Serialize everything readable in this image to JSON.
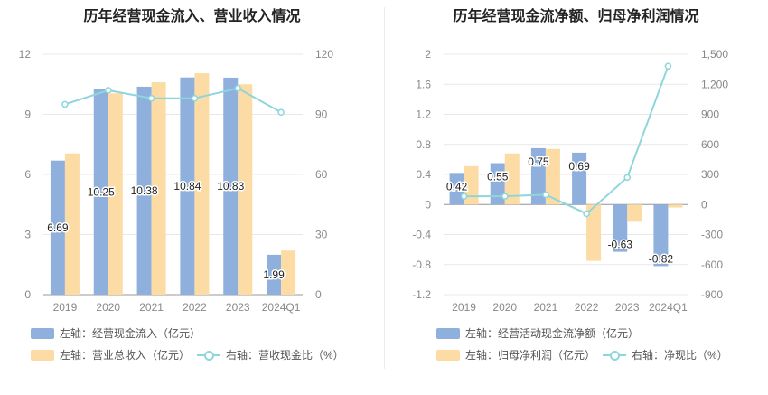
{
  "colors": {
    "blue": "#8fb0dd",
    "yellow": "#fcdca4",
    "line": "#8dd6dc",
    "grid": "#e8e8e8",
    "axis_text": "#888888"
  },
  "chart_data": [
    {
      "type": "bar",
      "title": "历年经营现金流入、营业收入情况",
      "categories": [
        "2019",
        "2020",
        "2021",
        "2022",
        "2023",
        "2024Q1"
      ],
      "left_axis": {
        "ylim": [
          0,
          12
        ],
        "ticks": [
          "0",
          "3",
          "6",
          "9",
          "12"
        ]
      },
      "right_axis": {
        "ylim": [
          0,
          120
        ],
        "ticks": [
          "0",
          "30",
          "60",
          "90",
          "120"
        ]
      },
      "series": [
        {
          "name": "左轴：经营现金流入（亿元）",
          "axis": "left",
          "kind": "bar",
          "values": [
            6.69,
            10.25,
            10.38,
            10.84,
            10.83,
            1.99
          ],
          "labels": [
            "6.69",
            "10.25",
            "10.38",
            "10.84",
            "10.83",
            "1.99"
          ]
        },
        {
          "name": "左轴：营业总收入（亿元）",
          "axis": "left",
          "kind": "bar",
          "values": [
            7.05,
            10.05,
            10.6,
            11.05,
            10.5,
            2.2
          ]
        },
        {
          "name": "右轴：营收现金比（%）",
          "axis": "right",
          "kind": "line",
          "values": [
            95,
            102,
            98,
            98,
            103,
            91
          ]
        }
      ]
    },
    {
      "type": "bar",
      "title": "历年经营现金流净额、归母净利润情况",
      "categories": [
        "2019",
        "2020",
        "2021",
        "2022",
        "2023",
        "2024Q1"
      ],
      "left_axis": {
        "ylim": [
          -1.2,
          2
        ],
        "ticks": [
          "-1.2",
          "-0.8",
          "-0.4",
          "0",
          "0.4",
          "0.8",
          "1.2",
          "1.6",
          "2"
        ]
      },
      "right_axis": {
        "ylim": [
          -900,
          1500
        ],
        "ticks": [
          "-900",
          "-600",
          "-300",
          "0",
          "300",
          "600",
          "900",
          "1,200",
          "1,500"
        ]
      },
      "series": [
        {
          "name": "左轴：经营活动现金流净额（亿元）",
          "axis": "left",
          "kind": "bar",
          "values": [
            0.42,
            0.55,
            0.75,
            0.69,
            -0.63,
            -0.82
          ],
          "labels": [
            "0.42",
            "0.55",
            "0.75",
            "0.69",
            "-0.63",
            "-0.82"
          ]
        },
        {
          "name": "左轴：归母净利润（亿元）",
          "axis": "left",
          "kind": "bar",
          "values": [
            0.51,
            0.68,
            0.74,
            -0.75,
            -0.23,
            -0.04
          ]
        },
        {
          "name": "右轴：净现比（%）",
          "axis": "right",
          "kind": "line",
          "values": [
            82,
            82,
            98,
            -92,
            270,
            1380
          ]
        }
      ]
    }
  ]
}
